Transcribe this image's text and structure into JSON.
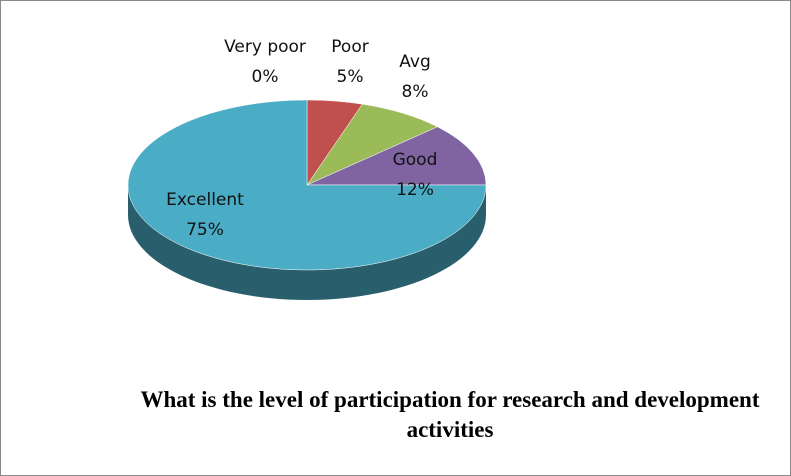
{
  "chart_data": {
    "type": "pie",
    "title": "What is the level of participation for research and development activities",
    "categories": [
      "Very poor",
      "Poor",
      "Avg",
      "Good",
      "Excellent"
    ],
    "values": [
      0,
      5,
      8,
      12,
      75
    ],
    "value_labels": [
      "0%",
      "5%",
      "8%",
      "12%",
      "75%"
    ],
    "colors": [
      "#4f81bd",
      "#c0504d",
      "#9bbb59",
      "#8064a2",
      "#4bacc6"
    ]
  }
}
